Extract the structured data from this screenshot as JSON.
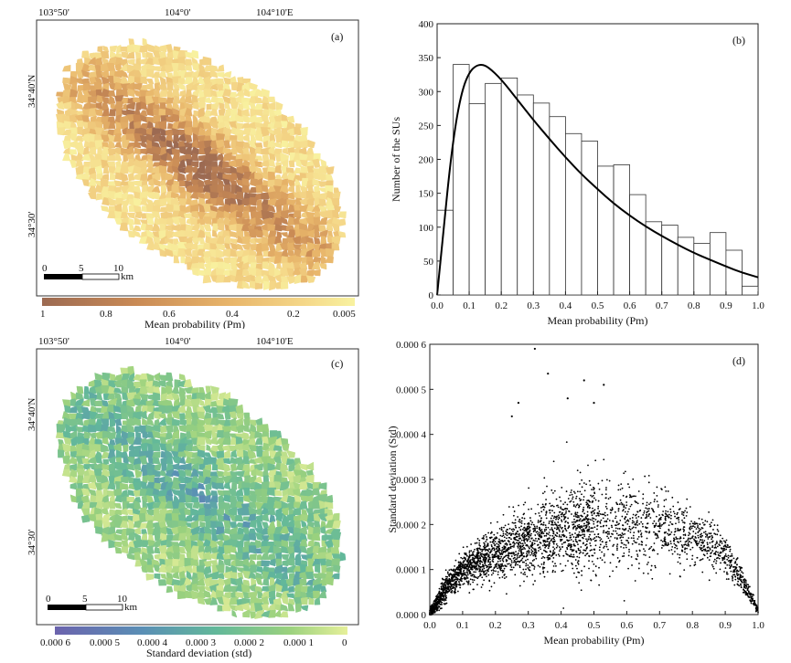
{
  "panel_a": {
    "letter": "(a)",
    "top_labels": [
      "103°50'",
      "104°0'",
      "104°10'E"
    ],
    "left_labels": [
      "34°40'N",
      "34°30'"
    ],
    "scale_ticks": [
      "0",
      "5",
      "10"
    ],
    "scale_unit": "km",
    "colorbar_ticks": [
      "1",
      "0.8",
      "0.6",
      "0.4",
      "0.2",
      "0.005"
    ],
    "colorbar_title": "Mean probability (Pm)",
    "colorbar_colors": [
      "#9c6a52",
      "#c98a55",
      "#e8b56a",
      "#f5d98a",
      "#f8f2a0"
    ]
  },
  "panel_c": {
    "letter": "(c)",
    "top_labels": [
      "103°50'",
      "104°0'",
      "104°10'E"
    ],
    "left_labels": [
      "34°40'N",
      "34°30'"
    ],
    "scale_ticks": [
      "0",
      "5",
      "10"
    ],
    "scale_unit": "km",
    "colorbar_ticks": [
      "0.000 6",
      "0.000 5",
      "0.000 4",
      "0.000 3",
      "0.000 2",
      "0.000 1",
      "0"
    ],
    "colorbar_title": "Standard deviation (std)",
    "colorbar_colors": [
      "#6b63ad",
      "#5a8fb5",
      "#62b89a",
      "#9ad17e",
      "#e6f09a"
    ]
  },
  "chart_data": [
    {
      "type": "bar",
      "panel": "(b)",
      "title": "",
      "xlabel": "Mean probability (Pm)",
      "ylabel": "Number of the SUs",
      "xlim": [
        0,
        1
      ],
      "ylim": [
        0,
        400
      ],
      "xticks": [
        "0.0",
        "0.1",
        "0.2",
        "0.3",
        "0.4",
        "0.5",
        "0.6",
        "0.7",
        "0.8",
        "0.9",
        "1.0"
      ],
      "yticks": [
        "0",
        "50",
        "100",
        "150",
        "200",
        "250",
        "300",
        "350",
        "400"
      ],
      "bin_edges": [
        0,
        0.05,
        0.1,
        0.15,
        0.2,
        0.25,
        0.3,
        0.35,
        0.4,
        0.45,
        0.5,
        0.55,
        0.6,
        0.65,
        0.7,
        0.75,
        0.8,
        0.85,
        0.9,
        0.95,
        1.0
      ],
      "values": [
        125,
        340,
        282,
        312,
        320,
        295,
        283,
        263,
        238,
        227,
        190,
        192,
        148,
        108,
        103,
        85,
        76,
        92,
        66,
        13
      ],
      "fit_curve": {
        "x": [
          0.0,
          0.02,
          0.04,
          0.06,
          0.08,
          0.1,
          0.12,
          0.14,
          0.16,
          0.2,
          0.25,
          0.3,
          0.35,
          0.4,
          0.45,
          0.5,
          0.55,
          0.6,
          0.65,
          0.7,
          0.75,
          0.8,
          0.85,
          0.9,
          0.95,
          1.0
        ],
        "y": [
          0,
          95,
          190,
          260,
          305,
          328,
          338,
          340,
          336,
          318,
          288,
          258,
          230,
          203,
          178,
          156,
          135,
          117,
          101,
          87,
          74,
          62,
          52,
          42,
          33,
          26
        ]
      }
    },
    {
      "type": "scatter",
      "panel": "(d)",
      "title": "",
      "xlabel": "Mean probability (Pm)",
      "ylabel": "Standard deviation (Std)",
      "xlim": [
        0,
        1
      ],
      "ylim": [
        0,
        0.0006
      ],
      "xticks": [
        "0.0",
        "0.1",
        "0.2",
        "0.3",
        "0.4",
        "0.5",
        "0.6",
        "0.7",
        "0.8",
        "0.9",
        "1.0"
      ],
      "yticks": [
        "0.000 0",
        "0.000 1",
        "0.000 2",
        "0.000 3",
        "0.000 4",
        "0.000 5",
        "0.000 6"
      ],
      "envelope": {
        "x": [
          0.0,
          0.05,
          0.1,
          0.15,
          0.2,
          0.25,
          0.3,
          0.35,
          0.4,
          0.45,
          0.5,
          0.55,
          0.6,
          0.65,
          0.7,
          0.75,
          0.8,
          0.85,
          0.9,
          0.95,
          1.0
        ],
        "mean": [
          0.0,
          6e-05,
          0.0001,
          0.00012,
          0.000135,
          0.00015,
          0.00016,
          0.00017,
          0.00018,
          0.00019,
          0.0002,
          0.0002,
          0.0002,
          0.000195,
          0.00019,
          0.00018,
          0.00017,
          0.000155,
          0.00013,
          8e-05,
          1e-05
        ],
        "spread": [
          1e-05,
          3e-05,
          4e-05,
          5e-05,
          6e-05,
          7e-05,
          8e-05,
          9e-05,
          0.0001,
          0.00011,
          0.00011,
          0.00011,
          0.0001,
          0.0001,
          9e-05,
          8e-05,
          7e-05,
          6e-05,
          4e-05,
          3e-05,
          1e-05
        ]
      },
      "outliers": [
        [
          0.32,
          0.00059
        ],
        [
          0.36,
          0.000535
        ],
        [
          0.47,
          0.00052
        ],
        [
          0.5,
          0.00047
        ],
        [
          0.53,
          0.00051
        ],
        [
          0.42,
          0.00048
        ],
        [
          0.27,
          0.00047
        ],
        [
          0.25,
          0.00044
        ]
      ]
    }
  ]
}
